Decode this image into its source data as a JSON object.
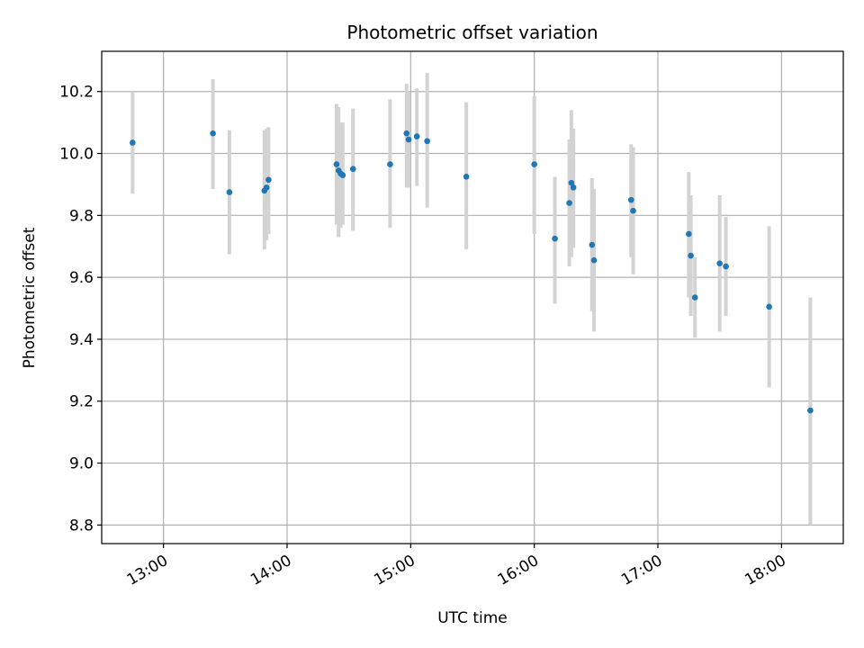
{
  "chart_data": {
    "type": "scatter",
    "title": "Photometric offset variation",
    "xlabel": "UTC time",
    "ylabel": "Photometric offset",
    "x_is_time": true,
    "xlim": [
      "12:30",
      "18:30"
    ],
    "ylim": [
      8.74,
      10.33
    ],
    "xticks": [
      "13:00",
      "14:00",
      "15:00",
      "16:00",
      "17:00",
      "18:00"
    ],
    "yticks": [
      8.8,
      9.0,
      9.2,
      9.4,
      9.6,
      9.8,
      10.0,
      10.2
    ],
    "ytick_labels": [
      "8.8",
      "9.0",
      "9.2",
      "9.4",
      "9.6",
      "9.8",
      "10.0",
      "10.2"
    ],
    "grid": true,
    "colors": {
      "marker": "#1f77b4",
      "errorbar": "#d3d3d3",
      "grid": "#b0b0b0"
    },
    "points": [
      {
        "t": "12:45",
        "y": 10.035,
        "lo": 9.87,
        "hi": 10.2
      },
      {
        "t": "13:24",
        "y": 10.065,
        "lo": 9.885,
        "hi": 10.24
      },
      {
        "t": "13:32",
        "y": 9.875,
        "lo": 9.675,
        "hi": 10.075
      },
      {
        "t": "13:49",
        "y": 9.88,
        "lo": 9.69,
        "hi": 10.075
      },
      {
        "t": "13:50",
        "y": 9.89,
        "lo": 9.72,
        "hi": 10.08
      },
      {
        "t": "13:51",
        "y": 9.915,
        "lo": 9.74,
        "hi": 10.085
      },
      {
        "t": "14:24",
        "y": 9.965,
        "lo": 9.77,
        "hi": 10.16
      },
      {
        "t": "14:25",
        "y": 9.945,
        "lo": 9.73,
        "hi": 10.15
      },
      {
        "t": "14:26",
        "y": 9.935,
        "lo": 9.76,
        "hi": 10.1
      },
      {
        "t": "14:27",
        "y": 9.93,
        "lo": 9.77,
        "hi": 10.1
      },
      {
        "t": "14:32",
        "y": 9.95,
        "lo": 9.75,
        "hi": 10.145
      },
      {
        "t": "14:50",
        "y": 9.965,
        "lo": 9.76,
        "hi": 10.175
      },
      {
        "t": "14:58",
        "y": 10.065,
        "lo": 9.89,
        "hi": 10.225
      },
      {
        "t": "14:59",
        "y": 10.045,
        "lo": 9.89,
        "hi": 10.2
      },
      {
        "t": "15:03",
        "y": 10.055,
        "lo": 9.895,
        "hi": 10.21
      },
      {
        "t": "15:08",
        "y": 10.04,
        "lo": 9.825,
        "hi": 10.26
      },
      {
        "t": "15:27",
        "y": 9.925,
        "lo": 9.69,
        "hi": 10.165
      },
      {
        "t": "16:00",
        "y": 9.965,
        "lo": 9.74,
        "hi": 10.185
      },
      {
        "t": "16:10",
        "y": 9.725,
        "lo": 9.515,
        "hi": 9.925
      },
      {
        "t": "16:17",
        "y": 9.84,
        "lo": 9.635,
        "hi": 10.045
      },
      {
        "t": "16:18",
        "y": 9.905,
        "lo": 9.665,
        "hi": 10.14
      },
      {
        "t": "16:19",
        "y": 9.89,
        "lo": 9.695,
        "hi": 10.08
      },
      {
        "t": "16:28",
        "y": 9.705,
        "lo": 9.49,
        "hi": 9.92
      },
      {
        "t": "16:29",
        "y": 9.655,
        "lo": 9.425,
        "hi": 9.885
      },
      {
        "t": "16:47",
        "y": 9.85,
        "lo": 9.665,
        "hi": 10.03
      },
      {
        "t": "16:48",
        "y": 9.815,
        "lo": 9.61,
        "hi": 10.02
      },
      {
        "t": "17:15",
        "y": 9.74,
        "lo": 9.535,
        "hi": 9.94
      },
      {
        "t": "17:16",
        "y": 9.67,
        "lo": 9.475,
        "hi": 9.865
      },
      {
        "t": "17:18",
        "y": 9.535,
        "lo": 9.405,
        "hi": 9.665
      },
      {
        "t": "17:30",
        "y": 9.645,
        "lo": 9.425,
        "hi": 9.865
      },
      {
        "t": "17:33",
        "y": 9.635,
        "lo": 9.475,
        "hi": 9.795
      },
      {
        "t": "17:54",
        "y": 9.505,
        "lo": 9.245,
        "hi": 9.765
      },
      {
        "t": "18:14",
        "y": 9.17,
        "lo": 8.8,
        "hi": 9.535
      }
    ]
  }
}
